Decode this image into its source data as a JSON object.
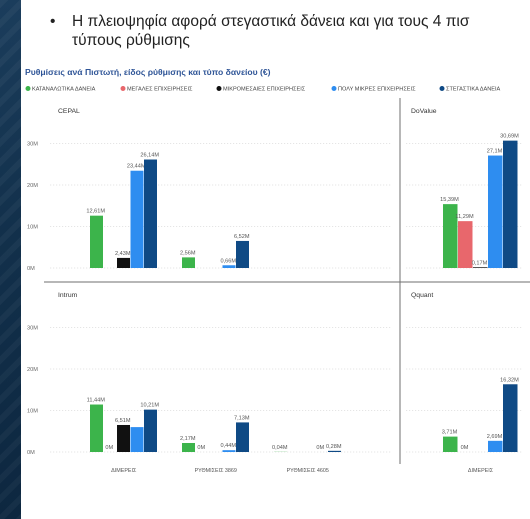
{
  "slide": {
    "bullet_line1": "Η πλειοψηφία αφορά στεγαστικά δάνεια και για τους 4 πισ",
    "bullet_line2": "τύπους ρύθμισης",
    "bullet_marker": "•"
  },
  "chart_data": {
    "type": "bar",
    "title": "Ρυθμίσεις ανά Πιστωτή, είδος ρύθμισης και τύπο δανείου (€)",
    "legend": [
      {
        "name": "ΚΑΤΑΝΑΛΩΤΙΚΑ ΔΑΝΕΙΑ",
        "color": "#3cb44b"
      },
      {
        "name": "ΜΕΓΑΛΕΣ ΕΠΙΧΕΙΡΗΣΕΙΣ",
        "color": "#e8676c"
      },
      {
        "name": "ΜΙΚΡΟΜΕΣΑΙΕΣ ΕΠΙΧΕΙΡΗΣΕΙΣ",
        "color": "#111111"
      },
      {
        "name": "ΠΟΛΥ ΜΙΚΡΕΣ ΕΠΙΧΕΙΡΗΣΕΙΣ",
        "color": "#2e8df0"
      },
      {
        "name": "ΣΤΕΓΑΣΤΙΚΑ ΔΑΝΕΙΑ",
        "color": "#0f4a85"
      }
    ],
    "y_ticks": [
      "0M",
      "10M",
      "20M",
      "30M"
    ],
    "ylim": [
      0,
      33
    ],
    "panels": [
      {
        "name": "CEPAL",
        "categories": [
          "ΔΙΜΕΡΕΙΣ",
          "ΡΥΘΜΙΣΕΙΣ 3869",
          "ΡΥΘΜΙΣΕΙΣ 4605"
        ],
        "groups": [
          [
            {
              "series": 0,
              "value": 12.61,
              "label": "12,61M"
            },
            {
              "series": 2,
              "value": 2.43,
              "label": "2,43M"
            },
            {
              "series": 3,
              "value": 23.44,
              "label": "23,44M"
            },
            {
              "series": 4,
              "value": 26.14,
              "label": "26,14M"
            }
          ],
          [
            {
              "series": 0,
              "value": 2.56,
              "label": "2,56M"
            },
            {
              "series": 3,
              "value": 0.66,
              "label": "0,66M"
            },
            {
              "series": 4,
              "value": 6.52,
              "label": "6,52M"
            }
          ],
          []
        ]
      },
      {
        "name": "DoValue",
        "categories": [
          "ΔΙΜΕΡΕΙΣ"
        ],
        "groups": [
          [
            {
              "series": 0,
              "value": 15.39,
              "label": "15,39M"
            },
            {
              "series": 1,
              "value": 11.29,
              "label": "11,29M"
            },
            {
              "series": 2,
              "value": 0.17,
              "label": "0,17M"
            },
            {
              "series": 3,
              "value": 27.1,
              "label": "27,1M"
            },
            {
              "series": 4,
              "value": 30.69,
              "label": "30,69M"
            }
          ]
        ]
      },
      {
        "name": "Intrum",
        "categories": [
          "ΔΙΜΕΡΕΙΣ",
          "ΡΥΘΜΙΣΕΙΣ 3869",
          "ΡΥΘΜΙΣΕΙΣ 4605"
        ],
        "groups": [
          [
            {
              "series": 0,
              "value": 11.44,
              "label": "11,44M"
            },
            {
              "series": 1,
              "value": 0,
              "label": "0M"
            },
            {
              "series": 2,
              "value": 6.51,
              "label": "6,51M"
            },
            {
              "series": 3,
              "value": 6.0,
              "label": ""
            },
            {
              "series": 4,
              "value": 10.21,
              "label": "10,21M"
            }
          ],
          [
            {
              "series": 0,
              "value": 2.17,
              "label": "2,17M"
            },
            {
              "series": 1,
              "value": 0,
              "label": "0M"
            },
            {
              "series": 3,
              "value": 0.44,
              "label": "0,44M"
            },
            {
              "series": 4,
              "value": 7.13,
              "label": "7,13M"
            }
          ],
          [
            {
              "series": 0,
              "value": 0.04,
              "label": "0,04M"
            },
            {
              "series": 3,
              "value": 0,
              "label": "0M"
            },
            {
              "series": 4,
              "value": 0.28,
              "label": "0,28M"
            }
          ]
        ]
      },
      {
        "name": "Qquant",
        "categories": [
          "ΔΙΜΕΡΕΙΣ"
        ],
        "groups": [
          [
            {
              "series": 0,
              "value": 3.71,
              "label": "3,71M"
            },
            {
              "series": 1,
              "value": 0,
              "label": "0M"
            },
            {
              "series": 3,
              "value": 2.69,
              "label": "2,69M"
            },
            {
              "series": 4,
              "value": 16.32,
              "label": "16,32M"
            }
          ]
        ]
      }
    ]
  }
}
